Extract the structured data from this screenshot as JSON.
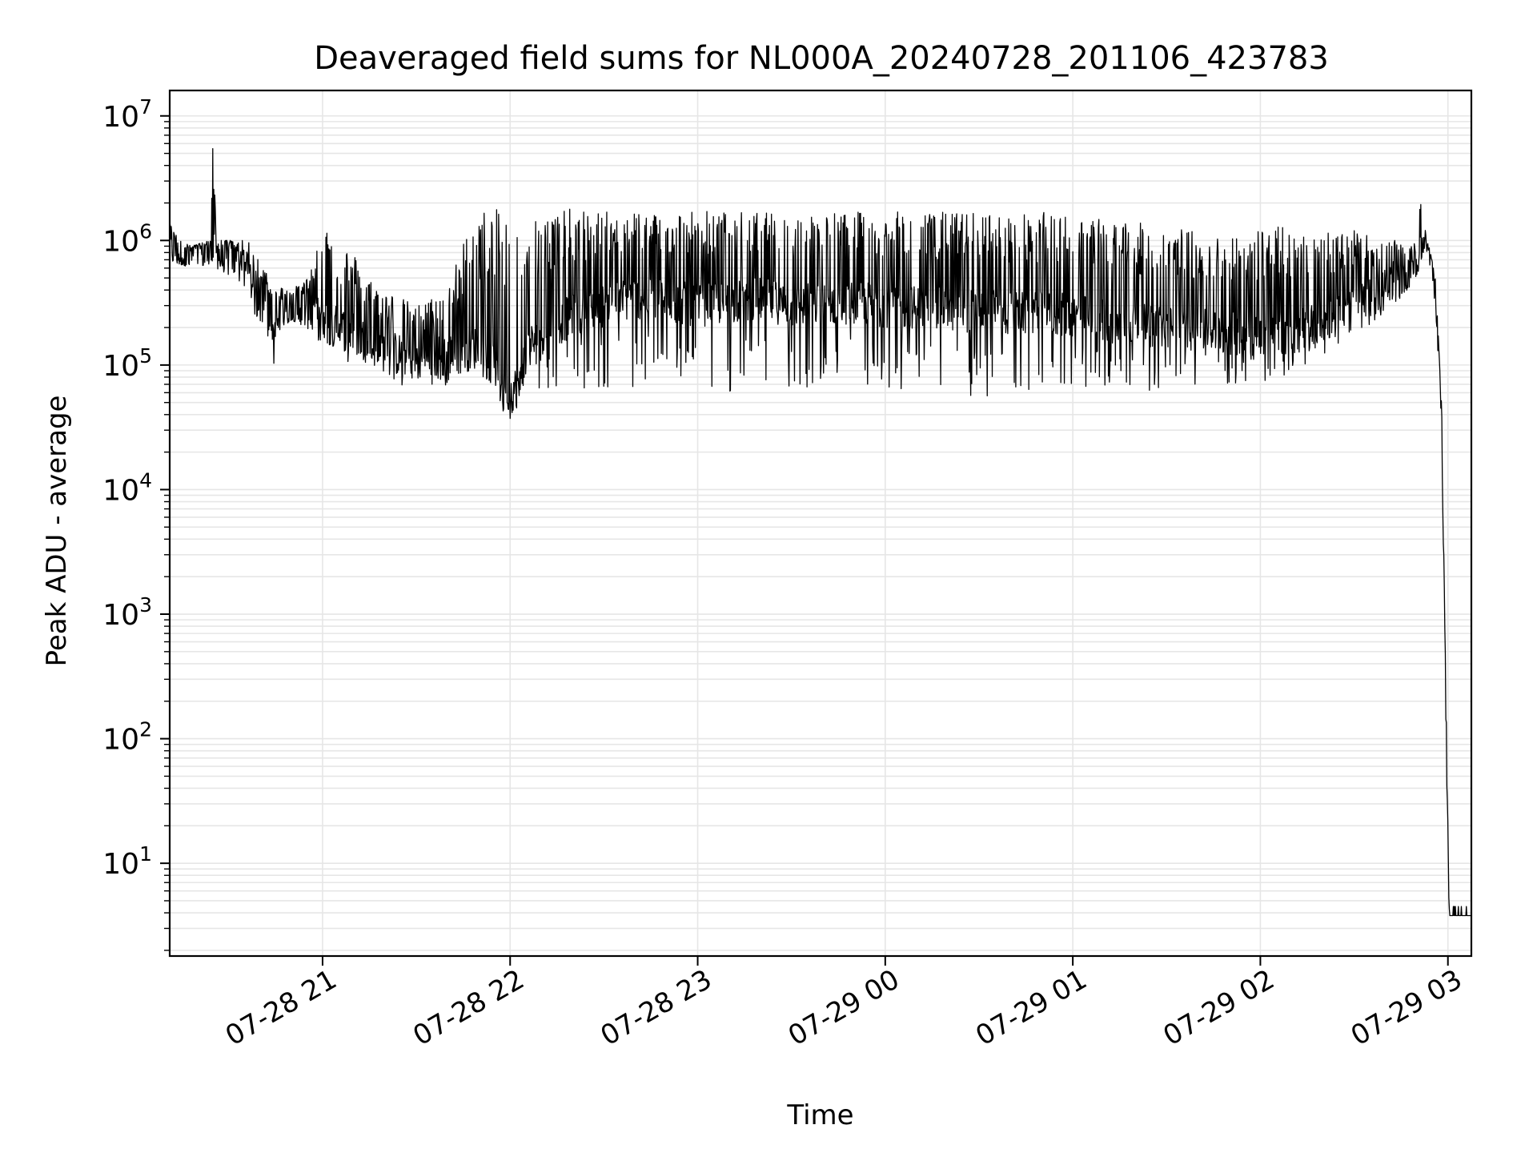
{
  "chart_data": {
    "type": "line",
    "title": "Deaveraged field sums for NL000A_20240728_201106_423783",
    "xlabel": "Time",
    "ylabel": "Peak ADU - average",
    "y_scale": "log",
    "ylim": [
      1.8,
      16000000
    ],
    "xlim": [
      "2024-07-28T20:11:06",
      "2024-07-29T03:07:30"
    ],
    "grid": true,
    "line_color": "#000000",
    "x_ticks": [
      {
        "t": "2024-07-28T21:00",
        "label": "07-28 21"
      },
      {
        "t": "2024-07-28T22:00",
        "label": "07-28 22"
      },
      {
        "t": "2024-07-28T23:00",
        "label": "07-28 23"
      },
      {
        "t": "2024-07-29T00:00",
        "label": "07-29 00"
      },
      {
        "t": "2024-07-29T01:00",
        "label": "07-29 01"
      },
      {
        "t": "2024-07-29T02:00",
        "label": "07-29 02"
      },
      {
        "t": "2024-07-29T03:00",
        "label": "07-29 03"
      }
    ],
    "y_ticks": [
      {
        "value": 10,
        "base": "10",
        "exp": "1"
      },
      {
        "value": 100,
        "base": "10",
        "exp": "2"
      },
      {
        "value": 1000,
        "base": "10",
        "exp": "3"
      },
      {
        "value": 10000,
        "base": "10",
        "exp": "4"
      },
      {
        "value": 100000,
        "base": "10",
        "exp": "5"
      },
      {
        "value": 1000000,
        "base": "10",
        "exp": "6"
      },
      {
        "value": 10000000,
        "base": "10",
        "exp": "7"
      }
    ],
    "series": [
      {
        "x": [
          "2024-07-28T20:11:06",
          "2024-07-28T20:14",
          "2024-07-28T20:18",
          "2024-07-28T20:24",
          "2024-07-28T20:25",
          "2024-07-28T20:26",
          "2024-07-28T20:32",
          "2024-07-28T20:36",
          "2024-07-28T20:40",
          "2024-07-28T20:44",
          "2024-07-28T20:44:30",
          "2024-07-28T20:45",
          "2024-07-28T20:50",
          "2024-07-28T20:55",
          "2024-07-28T21:00",
          "2024-07-28T21:05",
          "2024-07-28T21:10",
          "2024-07-28T21:15",
          "2024-07-28T21:20",
          "2024-07-28T21:25",
          "2024-07-28T21:30",
          "2024-07-28T21:35",
          "2024-07-28T21:40",
          "2024-07-28T21:45",
          "2024-07-28T21:50",
          "2024-07-28T21:52",
          "2024-07-28T21:55",
          "2024-07-28T21:58",
          "2024-07-28T22:00",
          "2024-07-28T22:03",
          "2024-07-28T22:05",
          "2024-07-28T22:10",
          "2024-07-28T22:20",
          "2024-07-28T22:30",
          "2024-07-28T22:40",
          "2024-07-28T22:50",
          "2024-07-28T23:00",
          "2024-07-28T23:10",
          "2024-07-28T23:20",
          "2024-07-28T23:30",
          "2024-07-28T23:40",
          "2024-07-28T23:50",
          "2024-07-29T00:00",
          "2024-07-29T00:10",
          "2024-07-29T00:20",
          "2024-07-29T00:30",
          "2024-07-29T00:40",
          "2024-07-29T00:50",
          "2024-07-29T01:00",
          "2024-07-29T01:10",
          "2024-07-29T01:20",
          "2024-07-29T01:30",
          "2024-07-29T01:40",
          "2024-07-29T01:50",
          "2024-07-29T02:00",
          "2024-07-29T02:10",
          "2024-07-29T02:20",
          "2024-07-29T02:30",
          "2024-07-29T02:40",
          "2024-07-29T02:45",
          "2024-07-29T02:50",
          "2024-07-29T02:52",
          "2024-07-29T02:53",
          "2024-07-29T02:54",
          "2024-07-29T02:56",
          "2024-07-29T02:58",
          "2024-07-29T02:59",
          "2024-07-29T03:00",
          "2024-07-29T03:00:20",
          "2024-07-29T03:00:40",
          "2024-07-29T03:01",
          "2024-07-29T03:07:30"
        ],
        "lo": [
          700000,
          650000,
          600000,
          650000,
          700000,
          600000,
          500000,
          350000,
          200000,
          120000,
          100000,
          180000,
          230000,
          200000,
          140000,
          120000,
          90000,
          100000,
          80000,
          65000,
          60000,
          60000,
          65000,
          60000,
          60000,
          70000,
          60000,
          40000,
          35000,
          45000,
          60000,
          60000,
          65000,
          65000,
          60000,
          60000,
          60000,
          60000,
          55000,
          60000,
          60000,
          65000,
          60000,
          60000,
          55000,
          55000,
          55000,
          60000,
          60000,
          60000,
          60000,
          60000,
          65000,
          70000,
          70000,
          80000,
          120000,
          180000,
          250000,
          350000,
          500000,
          800000,
          800000,
          650000,
          300000,
          30000,
          500,
          10,
          3.8,
          3.8,
          3.8,
          3.8
        ],
        "hi": [
          1400000,
          1000000,
          900000,
          1000000,
          8000000,
          1000000,
          1000000,
          1000000,
          700000,
          500000,
          400000,
          450000,
          400000,
          500000,
          1600000,
          1000000,
          800000,
          500000,
          400000,
          350000,
          300000,
          350000,
          400000,
          1000000,
          1700000,
          1800000,
          1800000,
          1700000,
          1800000,
          1700000,
          1600000,
          1700000,
          1800000,
          1700000,
          1800000,
          1700000,
          1800000,
          1700000,
          1700000,
          1600000,
          1700000,
          1700000,
          1700000,
          1700000,
          1700000,
          1700000,
          1600000,
          1700000,
          1600000,
          1500000,
          1400000,
          1300000,
          1200000,
          1100000,
          1300000,
          1300000,
          1300000,
          1200000,
          1000000,
          1000000,
          1000000,
          4000000,
          1000000,
          900000,
          500000,
          50000,
          1000,
          20,
          4.5,
          4.5,
          4.5,
          4.5
        ],
        "trend": [
          900000,
          800000,
          750000,
          800000,
          760000,
          780000,
          700000,
          550000,
          320000,
          250000,
          120000,
          230000,
          300000,
          280000,
          220000,
          200000,
          180000,
          150000,
          130000,
          120000,
          110000,
          115000,
          120000,
          130000,
          140000,
          110000,
          100000,
          70000,
          60000,
          70000,
          130000,
          180000,
          250000,
          300000,
          350000,
          330000,
          300000,
          320000,
          340000,
          300000,
          310000,
          320000,
          300000,
          290000,
          280000,
          270000,
          260000,
          260000,
          250000,
          230000,
          210000,
          200000,
          190000,
          180000,
          180000,
          190000,
          220000,
          280000,
          400000,
          500000,
          700000,
          900000,
          900000,
          800000,
          400000,
          40000,
          700,
          15,
          3.8,
          3.8,
          3.8,
          3.8
        ]
      }
    ]
  }
}
